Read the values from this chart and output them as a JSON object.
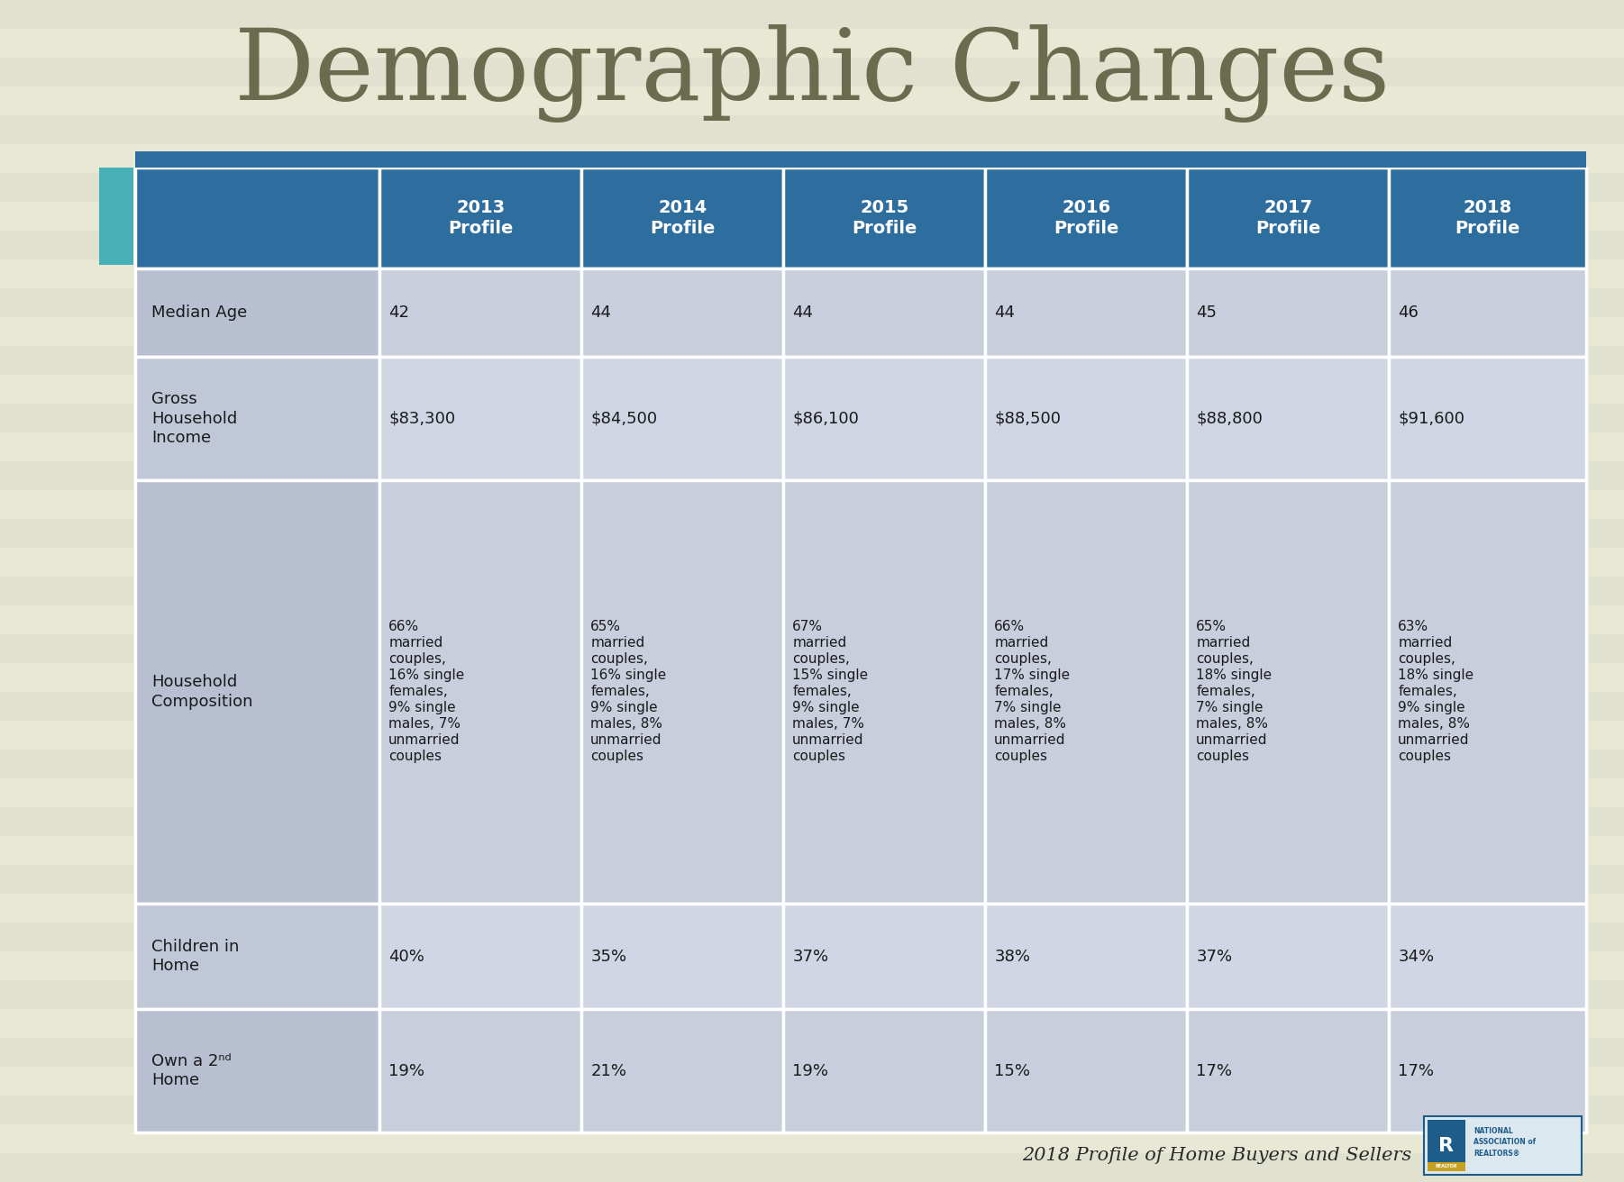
{
  "title": "Demographic Changes",
  "title_color": "#6b6b50",
  "background_color": "#e8e8d5",
  "stripe_color": "#dcdccc",
  "header_bg_color": "#2d6e9e",
  "header_text_color": "#ffffff",
  "row_label_bg_odd": "#b8bfd0",
  "row_label_bg_even": "#c0c8d8",
  "data_cell_bg_odd": "#c8cedc",
  "data_cell_bg_even": "#d0d6e4",
  "cell_text_color": "#1a1a1a",
  "border_color": "#ffffff",
  "accent_teal": "#4ab0b8",
  "accent_blue": "#2d6e9e",
  "footer_text": "2018 Profile of Home Buyers and Sellers",
  "footer_color": "#2a2a2a",
  "nar_blue": "#1e5c8a",
  "columns": [
    "",
    "2013\nProfile",
    "2014\nProfile",
    "2015\nProfile",
    "2016\nProfile",
    "2017\nProfile",
    "2018\nProfile"
  ],
  "rows": [
    {
      "label": "Median Age",
      "values": [
        "42",
        "44",
        "44",
        "44",
        "45",
        "46"
      ],
      "tall": false
    },
    {
      "label": "Gross\nHousehold\nIncome",
      "values": [
        "$83,300",
        "$84,500",
        "$86,100",
        "$88,500",
        "$88,800",
        "$91,600"
      ],
      "tall": false
    },
    {
      "label": "Household\nComposition",
      "values": [
        "66%\nmarried\ncouples,\n16% single\nfemales,\n9% single\nmales, 7%\nunmarried\ncouples",
        "65%\nmarried\ncouples,\n16% single\nfemales,\n9% single\nmales, 8%\nunmarried\ncouples",
        "67%\nmarried\ncouples,\n15% single\nfemales,\n9% single\nmales, 7%\nunmarried\ncouples",
        "66%\nmarried\ncouples,\n17% single\nfemales,\n7% single\nmales, 8%\nunmarried\ncouples",
        "65%\nmarried\ncouples,\n18% single\nfemales,\n7% single\nmales, 8%\nunmarried\ncouples",
        "63%\nmarried\ncouples,\n18% single\nfemales,\n9% single\nmales, 8%\nunmarried\ncouples"
      ],
      "tall": true
    },
    {
      "label": "Children in\nHome",
      "values": [
        "40%",
        "35%",
        "37%",
        "38%",
        "37%",
        "34%"
      ],
      "tall": false
    },
    {
      "label": "Own a 2ⁿᵈ\nHome",
      "values": [
        "19%",
        "21%",
        "19%",
        "15%",
        "17%",
        "17%"
      ],
      "tall": false
    }
  ]
}
